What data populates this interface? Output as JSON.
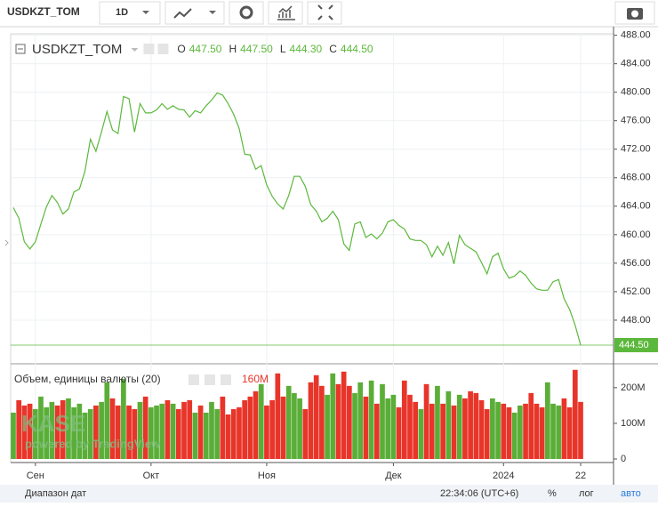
{
  "toolbar": {
    "symbol": "USDKZT_TOM",
    "interval": "1D"
  },
  "chart_data": [
    {
      "type": "line",
      "title": "USDKZT_TOM, D",
      "color": "#5cb83c",
      "ohlc": {
        "labels": [
          "O",
          "H",
          "L",
          "C"
        ],
        "values": [
          447.5,
          447.5,
          444.3,
          444.5
        ],
        "value_labels": [
          "447.50",
          "447.50",
          "444.30",
          "444.50"
        ]
      },
      "last_value_label": "444.50",
      "categories": [
        null,
        null,
        null,
        null,
        "Сен",
        null,
        null,
        null,
        null,
        null,
        null,
        null,
        null,
        null,
        null,
        null,
        null,
        null,
        null,
        null,
        null,
        null,
        null,
        null,
        null,
        "Окт",
        null,
        null,
        null,
        null,
        null,
        null,
        null,
        null,
        null,
        null,
        null,
        null,
        null,
        null,
        null,
        null,
        null,
        null,
        null,
        null,
        "Ноя",
        null,
        null,
        null,
        null,
        null,
        null,
        null,
        null,
        null,
        null,
        null,
        null,
        null,
        null,
        null,
        null,
        null,
        null,
        null,
        null,
        null,
        null,
        "Дек",
        null,
        null,
        null,
        null,
        null,
        null,
        null,
        null,
        null,
        null,
        null,
        null,
        null,
        null,
        null,
        null,
        null,
        null,
        null,
        "2024",
        null,
        null,
        null,
        null,
        null,
        null,
        null,
        null,
        null,
        null,
        null,
        null,
        null,
        "22"
      ],
      "series": [
        {
          "name": "USDKZT_TOM",
          "color": "#5cb83c",
          "values": [
            463.8,
            462.3,
            459.0,
            458.0,
            459.0,
            461.5,
            463.9,
            465.5,
            464.5,
            462.9,
            463.6,
            466.0,
            466.4,
            468.9,
            473.4,
            471.7,
            474.4,
            477.3,
            474.7,
            474.2,
            479.4,
            479.1,
            474.4,
            478.4,
            477.1,
            477.1,
            477.5,
            478.4,
            477.6,
            478.1,
            477.6,
            477.5,
            476.5,
            477.4,
            477.1,
            478.1,
            478.9,
            479.9,
            479.6,
            478.4,
            476.9,
            474.9,
            471.3,
            471.2,
            469.2,
            469.7,
            467.0,
            465.4,
            464.3,
            463.6,
            465.5,
            468.2,
            468.2,
            466.8,
            464.2,
            463.3,
            461.8,
            462.3,
            463.3,
            462.1,
            458.7,
            457.8,
            461.5,
            461.8,
            459.6,
            460.1,
            459.4,
            460.2,
            461.8,
            462.1,
            461.3,
            460.8,
            459.4,
            459.2,
            459.2,
            458.6,
            456.9,
            458.4,
            457.1,
            458.9,
            455.9,
            459.9,
            458.6,
            458.1,
            457.6,
            456.1,
            454.5,
            456.9,
            457.4,
            455.2,
            453.9,
            454.2,
            454.9,
            454.3,
            453.2,
            452.4,
            452.2,
            452.2,
            453.4,
            453.7,
            451.0,
            449.5,
            447.3,
            444.5
          ]
        }
      ],
      "ylim": [
        442,
        488.2
      ],
      "yticks": [
        {
          "value": 488,
          "label": "488.00"
        },
        {
          "value": 484,
          "label": "484.00"
        },
        {
          "value": 480,
          "label": "480.00"
        },
        {
          "value": 476,
          "label": "476.00"
        },
        {
          "value": 472,
          "label": "472.00"
        },
        {
          "value": 468,
          "label": "468.00"
        },
        {
          "value": 464,
          "label": "464.00"
        },
        {
          "value": 460,
          "label": "460.00"
        },
        {
          "value": 456,
          "label": "456.00"
        },
        {
          "value": 452,
          "label": "452.00"
        },
        {
          "value": 448,
          "label": "448.00"
        }
      ],
      "grid": true
    },
    {
      "type": "bar",
      "title": "Объем, единицы валюты (20)",
      "last_value_label": "160M",
      "colors": {
        "up": "#5aae38",
        "down": "#e8352a"
      },
      "values": [
        130000000.0,
        165000000.0,
        150000000.0,
        155000000.0,
        140000000.0,
        175000000.0,
        145000000.0,
        160000000.0,
        150000000.0,
        165000000.0,
        170000000.0,
        145000000.0,
        155000000.0,
        130000000.0,
        140000000.0,
        150000000.0,
        160000000.0,
        215000000.0,
        170000000.0,
        150000000.0,
        225000000.0,
        150000000.0,
        140000000.0,
        160000000.0,
        175000000.0,
        145000000.0,
        150000000.0,
        155000000.0,
        165000000.0,
        155000000.0,
        140000000.0,
        160000000.0,
        165000000.0,
        130000000.0,
        150000000.0,
        130000000.0,
        160000000.0,
        140000000.0,
        175000000.0,
        125000000.0,
        140000000.0,
        145000000.0,
        165000000.0,
        175000000.0,
        190000000.0,
        210000000.0,
        150000000.0,
        165000000.0,
        240000000.0,
        175000000.0,
        205000000.0,
        185000000.0,
        170000000.0,
        140000000.0,
        215000000.0,
        235000000.0,
        205000000.0,
        180000000.0,
        240000000.0,
        210000000.0,
        245000000.0,
        205000000.0,
        185000000.0,
        215000000.0,
        175000000.0,
        220000000.0,
        155000000.0,
        210000000.0,
        170000000.0,
        180000000.0,
        145000000.0,
        220000000.0,
        180000000.0,
        160000000.0,
        140000000.0,
        210000000.0,
        155000000.0,
        205000000.0,
        155000000.0,
        190000000.0,
        150000000.0,
        180000000.0,
        170000000.0,
        190000000.0,
        185000000.0,
        165000000.0,
        140000000.0,
        170000000.0,
        160000000.0,
        155000000.0,
        145000000.0,
        130000000.0,
        150000000.0,
        155000000.0,
        185000000.0,
        155000000.0,
        145000000.0,
        215000000.0,
        155000000.0,
        150000000.0,
        170000000.0,
        145000000.0,
        250000000.0,
        160000000.0
      ],
      "ylim": [
        0,
        262000000.0
      ],
      "yticks": [
        {
          "value": 200000000,
          "label": "200M"
        },
        {
          "value": 100000000,
          "label": "100M"
        },
        0
      ]
    }
  ],
  "watermark": {
    "logo": "KASE",
    "text": "powered by TradingView"
  },
  "footer": {
    "range": "Диапазон дат",
    "time": "22:34:06 (UTC+6)",
    "percent": "%",
    "log": "лог",
    "auto": "авто"
  }
}
